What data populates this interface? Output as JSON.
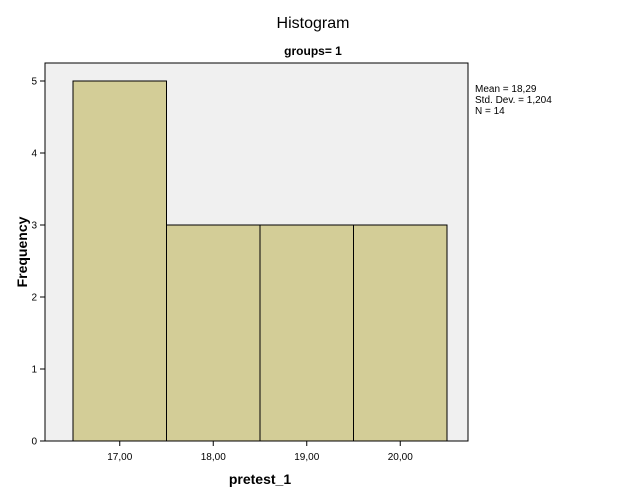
{
  "chart_data": {
    "type": "bar",
    "title": "Histogram",
    "subtitle": "groups= 1",
    "xlabel": "pretest_1",
    "ylabel": "Frequency",
    "categories": [
      "17,00",
      "18,00",
      "19,00",
      "20,00"
    ],
    "values": [
      5,
      3,
      3,
      3
    ],
    "ylim": [
      0,
      5
    ],
    "yticks": [
      0,
      1,
      2,
      3,
      4,
      5
    ],
    "grid": false,
    "legend": "none",
    "stats": {
      "mean": "Mean = 18,29",
      "std_dev": "Std. Dev. = 1,204",
      "n": "N = 14"
    },
    "colors": {
      "bar_fill": "#d3cd97",
      "bar_stroke": "#000000",
      "plot_background": "#f0f0f0"
    }
  }
}
